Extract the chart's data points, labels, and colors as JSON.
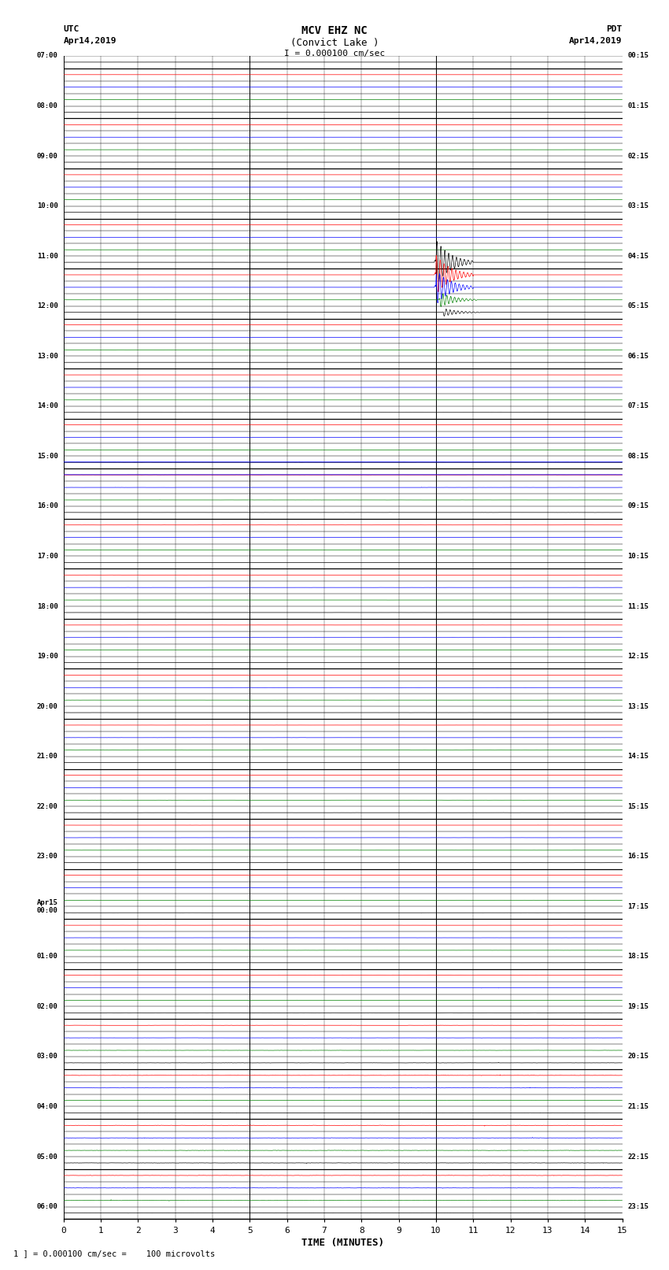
{
  "title_line1": "MCV EHZ NC",
  "title_line2": "(Convict Lake )",
  "title_line3": "I = 0.000100 cm/sec",
  "left_label_top": "UTC",
  "left_label_date": "Apr14,2019",
  "right_label_top": "PDT",
  "right_label_date": "Apr14,2019",
  "xlabel": "TIME (MINUTES)",
  "footer": "1 ] = 0.000100 cm/sec =    100 microvolts",
  "n_rows": 93,
  "n_minutes": 15,
  "utc_labels_major": [
    "07:00",
    "08:00",
    "09:00",
    "10:00",
    "11:00",
    "12:00",
    "13:00",
    "14:00",
    "15:00",
    "16:00",
    "17:00",
    "18:00",
    "19:00",
    "20:00",
    "21:00",
    "22:00",
    "23:00",
    "Apr15\n00:00",
    "01:00",
    "02:00",
    "03:00",
    "04:00",
    "05:00",
    "06:00"
  ],
  "pdt_labels_major": [
    "00:15",
    "01:15",
    "02:15",
    "03:15",
    "04:15",
    "05:15",
    "06:15",
    "07:15",
    "08:15",
    "09:15",
    "10:15",
    "11:15",
    "12:15",
    "13:15",
    "14:15",
    "15:15",
    "16:15",
    "17:15",
    "18:15",
    "19:15",
    "20:15",
    "21:15",
    "22:15",
    "23:15"
  ],
  "row_colors": [
    "black",
    "red",
    "blue",
    "green",
    "black",
    "red",
    "blue",
    "green"
  ],
  "noise_profile": [
    0.003,
    0.003,
    0.003,
    0.003,
    0.003,
    0.003,
    0.003,
    0.003,
    0.003,
    0.003,
    0.003,
    0.003,
    0.003,
    0.003,
    0.003,
    0.003,
    0.003,
    0.003,
    0.003,
    0.003,
    0.003,
    0.003,
    0.003,
    0.003,
    0.003,
    0.003,
    0.003,
    0.003,
    0.004,
    0.004,
    0.004,
    0.004,
    0.005,
    0.008,
    0.008,
    0.006,
    0.006,
    0.006,
    0.006,
    0.006,
    0.006,
    0.005,
    0.005,
    0.005,
    0.005,
    0.005,
    0.005,
    0.005,
    0.005,
    0.005,
    0.005,
    0.005,
    0.006,
    0.006,
    0.006,
    0.006,
    0.006,
    0.006,
    0.006,
    0.006,
    0.006,
    0.006,
    0.006,
    0.006,
    0.006,
    0.006,
    0.006,
    0.006,
    0.006,
    0.006,
    0.006,
    0.006,
    0.006,
    0.007,
    0.007,
    0.007,
    0.01,
    0.01,
    0.01,
    0.012,
    0.015,
    0.02,
    0.02,
    0.02,
    0.02,
    0.02,
    0.02,
    0.02,
    0.02,
    0.02,
    0.02,
    0.02,
    0.02
  ]
}
